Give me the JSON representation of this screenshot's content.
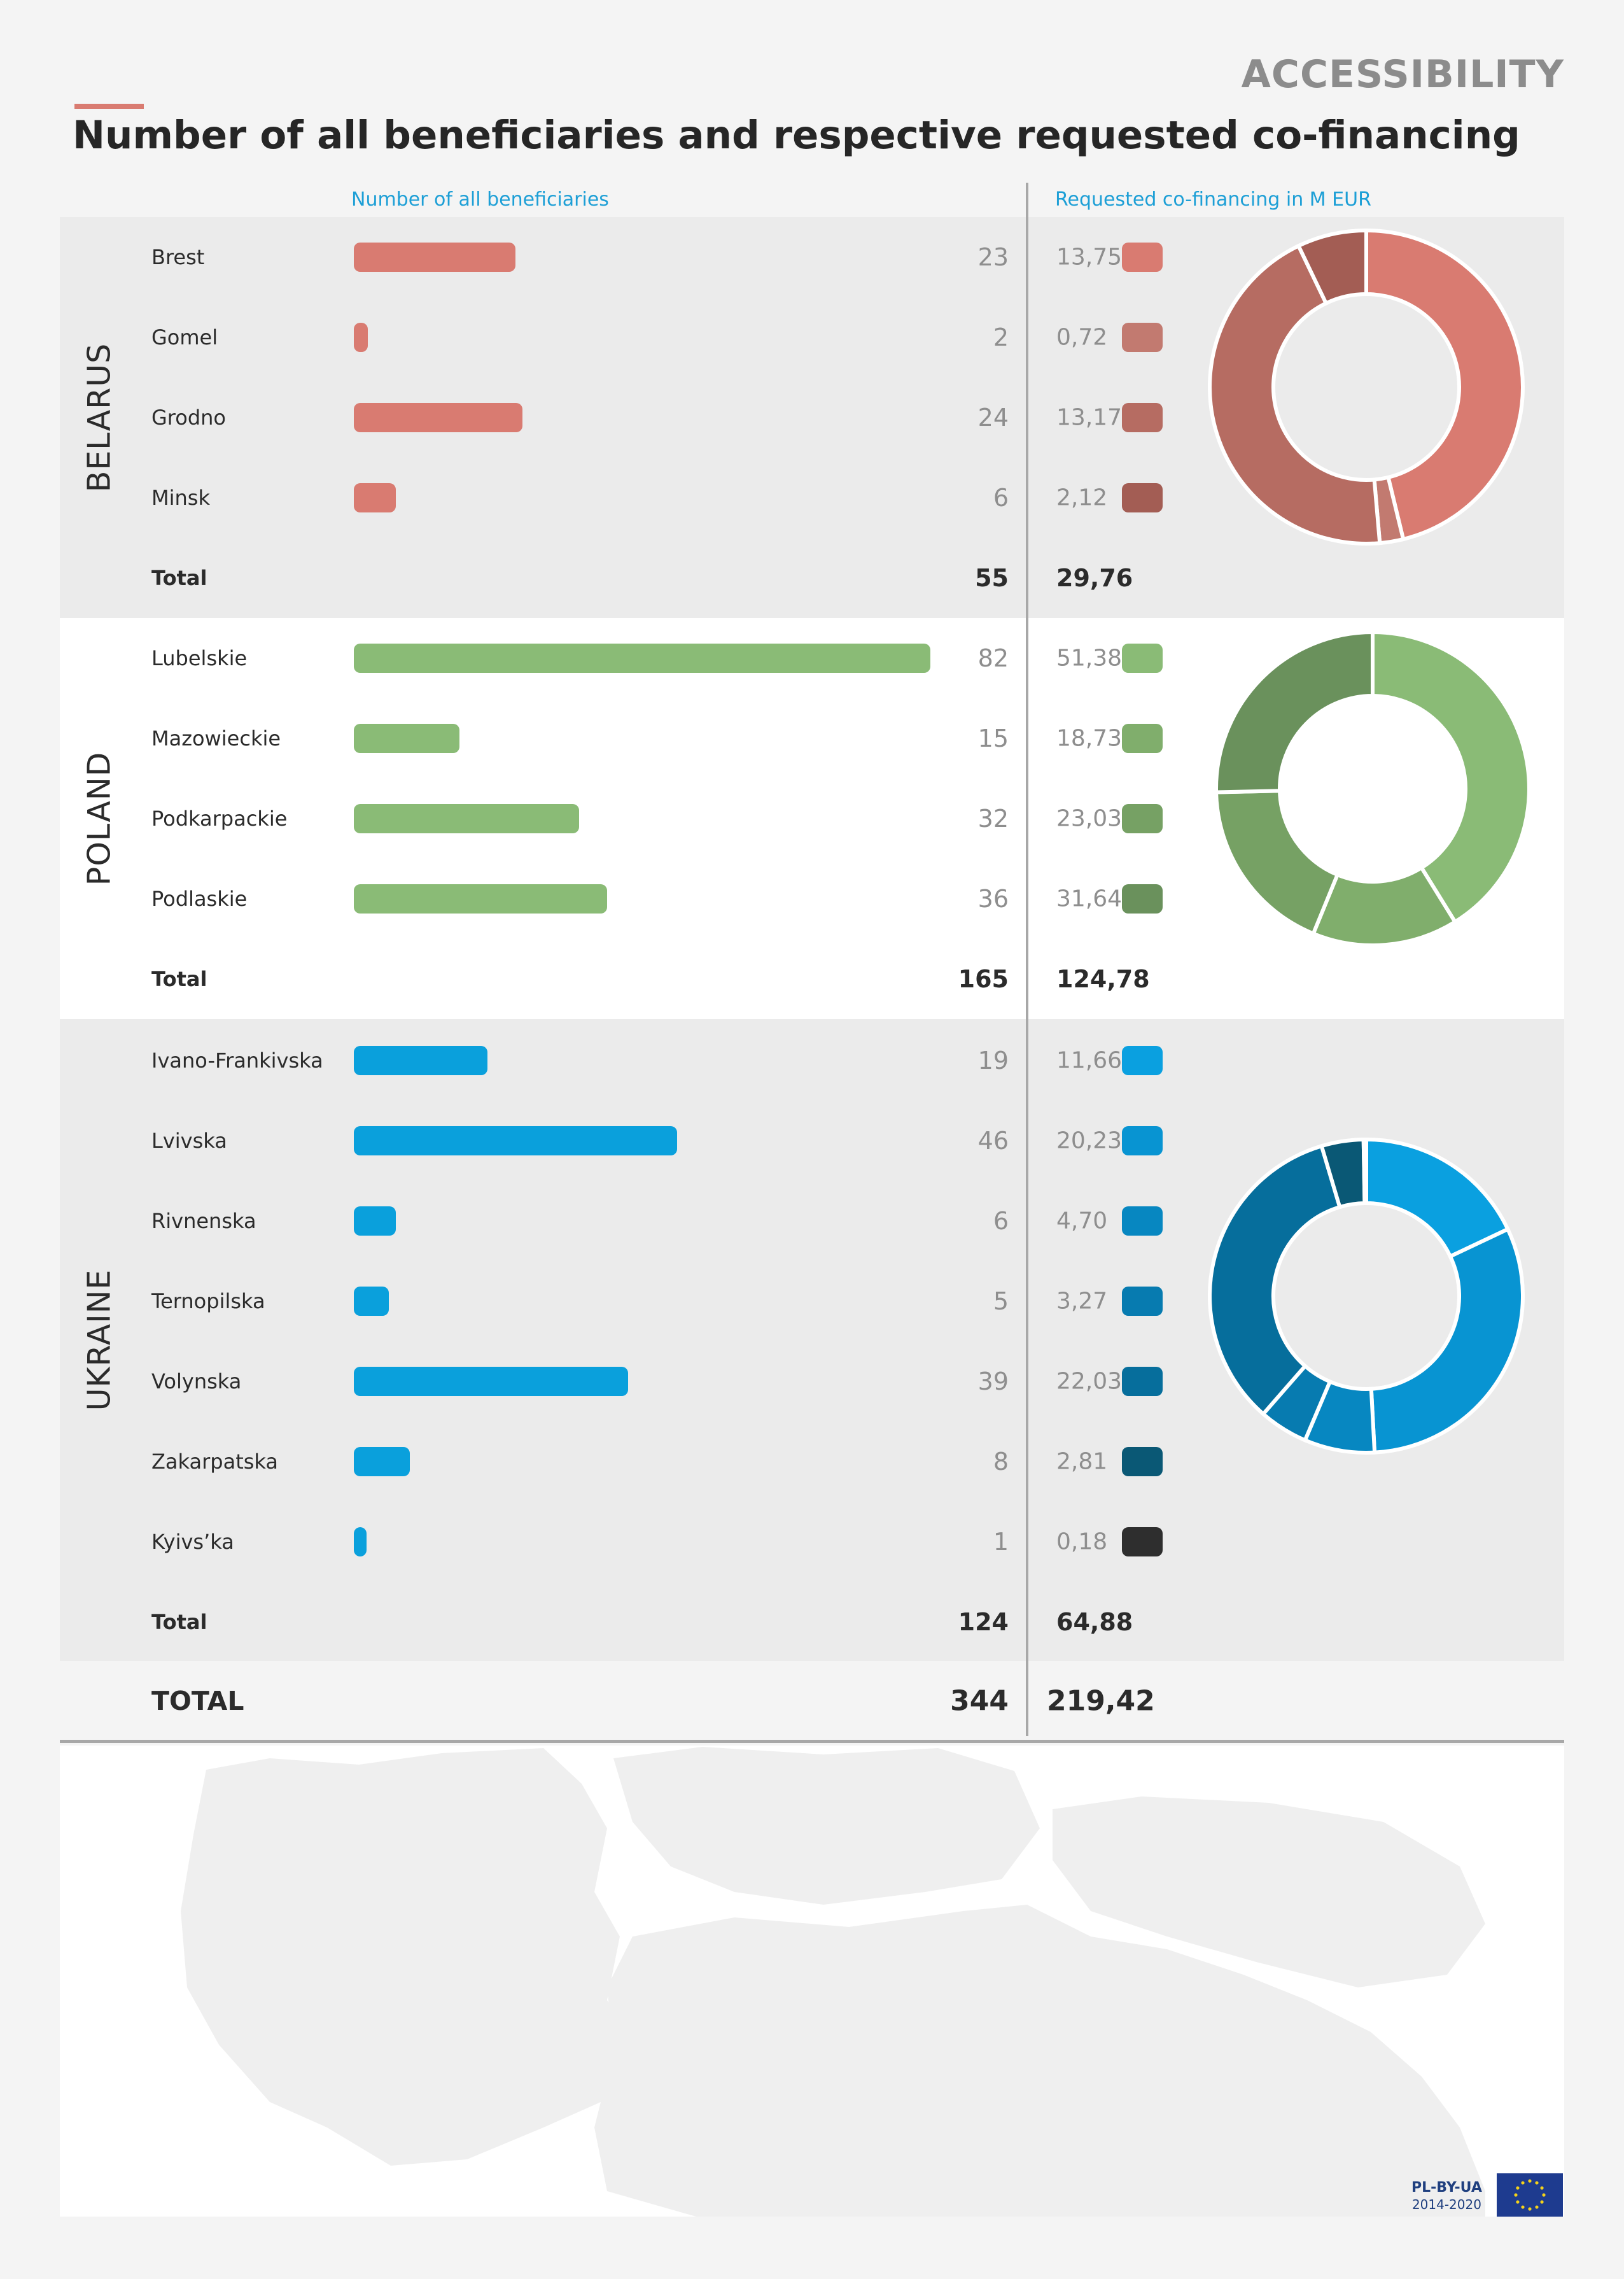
{
  "header": {
    "page_label": "ACCESSIBILITY",
    "title": "Number of all beneficiaries and respective requested co-financing",
    "left_column": "Number of all beneficiaries",
    "right_column": "Requested co-financing in M EUR"
  },
  "chart_data": {
    "type": "bar",
    "title": "Number of all beneficiaries and respective requested co-financing",
    "bar_axis_max": 82,
    "groups": [
      {
        "country": "BELARUS",
        "color": "#d97b71",
        "rows": [
          {
            "region": "Brest",
            "beneficiaries": 23,
            "cofinancing": "13,75",
            "cofinancing_value": 13.75,
            "swatch": "#d97b71"
          },
          {
            "region": "Gomel",
            "beneficiaries": 2,
            "cofinancing": "0,72",
            "cofinancing_value": 0.72,
            "swatch": "#c27a70"
          },
          {
            "region": "Grodno",
            "beneficiaries": 24,
            "cofinancing": "13,17",
            "cofinancing_value": 13.17,
            "swatch": "#b66c62"
          },
          {
            "region": "Minsk",
            "beneficiaries": 6,
            "cofinancing": "2,12",
            "cofinancing_value": 2.12,
            "swatch": "#a35d54"
          }
        ],
        "total_label": "Total",
        "total_beneficiaries": "55",
        "total_cofinancing": "29,76"
      },
      {
        "country": "POLAND",
        "color": "#8abb76",
        "rows": [
          {
            "region": "Lubelskie",
            "beneficiaries": 82,
            "cofinancing": "51,38",
            "cofinancing_value": 51.38,
            "swatch": "#8abb76"
          },
          {
            "region": "Mazowieckie",
            "beneficiaries": 15,
            "cofinancing": "18,73",
            "cofinancing_value": 18.73,
            "swatch": "#80ae6c"
          },
          {
            "region": "Podkarpackie",
            "beneficiaries": 32,
            "cofinancing": "23,03",
            "cofinancing_value": 23.03,
            "swatch": "#76a164"
          },
          {
            "region": "Podlaskie",
            "beneficiaries": 36,
            "cofinancing": "31,64",
            "cofinancing_value": 31.64,
            "swatch": "#6a915c"
          }
        ],
        "total_label": "Total",
        "total_beneficiaries": "165",
        "total_cofinancing": "124,78"
      },
      {
        "country": "UKRAINE",
        "color": "#0aa0dc",
        "rows": [
          {
            "region": "Ivano-Frankivska",
            "beneficiaries": 19,
            "cofinancing": "11,66",
            "cofinancing_value": 11.66,
            "swatch": "#0aa0e0"
          },
          {
            "region": "Lvivska",
            "beneficiaries": 46,
            "cofinancing": "20,23",
            "cofinancing_value": 20.23,
            "swatch": "#0894d2"
          },
          {
            "region": "Rivnenska",
            "beneficiaries": 6,
            "cofinancing": "4,70",
            "cofinancing_value": 4.7,
            "swatch": "#0787c1"
          },
          {
            "region": "Ternopilska",
            "beneficiaries": 5,
            "cofinancing": "3,27",
            "cofinancing_value": 3.27,
            "swatch": "#077bb0"
          },
          {
            "region": "Volynska",
            "beneficiaries": 39,
            "cofinancing": "22,03",
            "cofinancing_value": 22.03,
            "swatch": "#066e9c"
          },
          {
            "region": "Zakarpatska",
            "beneficiaries": 8,
            "cofinancing": "2,81",
            "cofinancing_value": 2.81,
            "swatch": "#0a5875"
          },
          {
            "region": "Kyivs’ka",
            "beneficiaries": 1,
            "cofinancing": "0,18",
            "cofinancing_value": 0.18,
            "swatch": "#2e2e2e"
          }
        ],
        "total_label": "Total",
        "total_beneficiaries": "124",
        "total_cofinancing": "64,88"
      }
    ],
    "grand_total": {
      "label": "TOTAL",
      "beneficiaries": "344",
      "cofinancing": "219,42"
    }
  },
  "footer": {
    "program_line1": "PL-BY-UA",
    "program_line2": "2014-2020",
    "flag_icon": "eu-flag-icon"
  }
}
